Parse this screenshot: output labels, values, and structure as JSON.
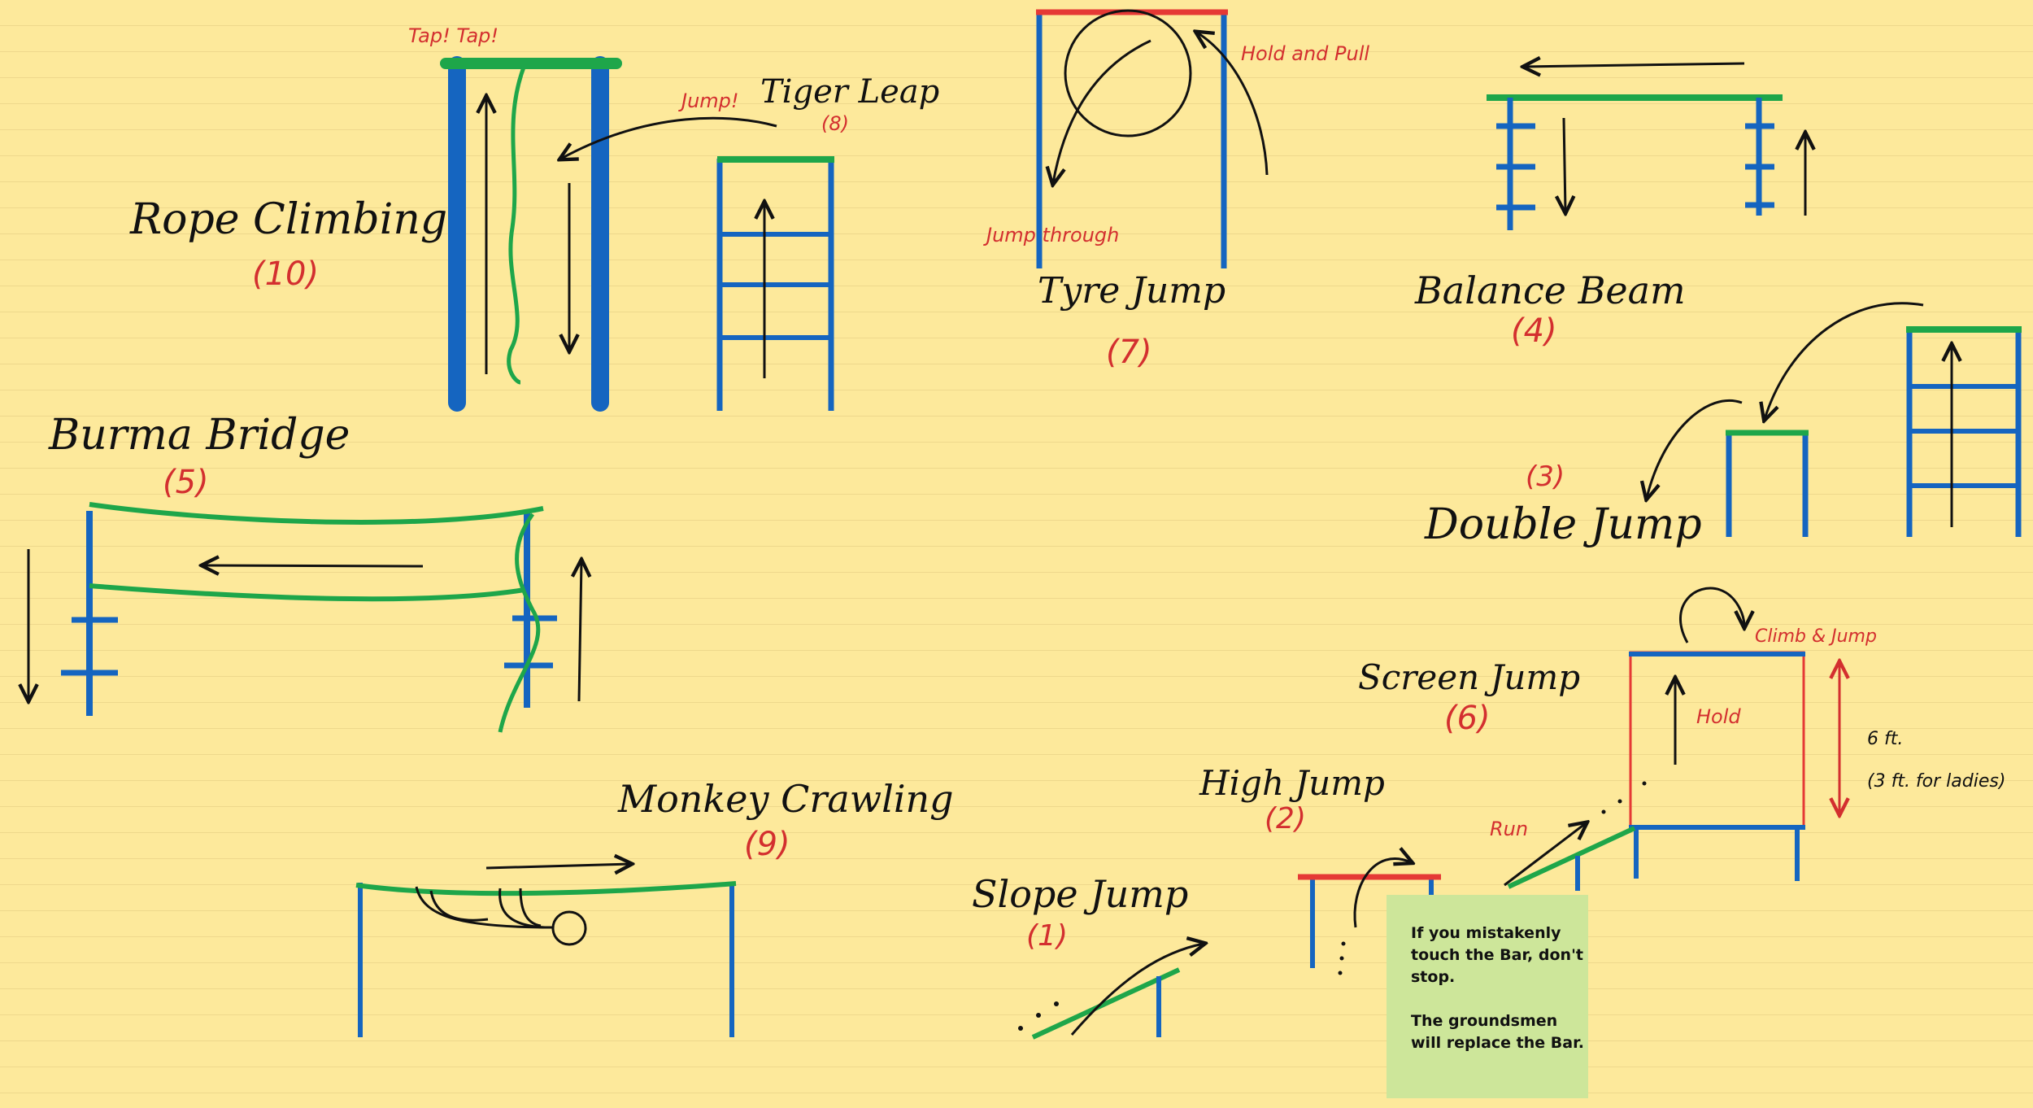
{
  "obstacles": {
    "rope_climbing": {
      "title": "Rope Climbing",
      "number": "(10)",
      "label_tap": "Tap! Tap!"
    },
    "tiger_leap": {
      "title": "Tiger Leap",
      "number": "(8)",
      "label_jump": "Jump!"
    },
    "tyre_jump": {
      "title": "Tyre Jump",
      "number": "(7)",
      "label_hold": "Hold and Pull",
      "label_through": "Jump through"
    },
    "balance_beam": {
      "title": "Balance Beam",
      "number": "(4)"
    },
    "burma_bridge": {
      "title": "Burma Bridge",
      "number": "(5)"
    },
    "double_jump": {
      "title": "Double Jump",
      "number": "(3)"
    },
    "screen_jump": {
      "title": "Screen Jump",
      "number": "(6)",
      "label_climb": "Climb & Jump",
      "label_hold": "Hold",
      "height": "6 ft.",
      "height_ladies": "(3 ft. for ladies)"
    },
    "high_jump": {
      "title": "High Jump",
      "number": "(2)",
      "label_run": "Run"
    },
    "monkey_crawling": {
      "title": "Monkey Crawling",
      "number": "(9)"
    },
    "slope_jump": {
      "title": "Slope Jump",
      "number": "(1)"
    }
  },
  "sticky_note": {
    "line1": "If you mistakenly touch the Bar, don't stop.",
    "line2": "The groundsmen will replace the Bar."
  },
  "colors": {
    "background": "#fde99b",
    "post": "#1565c0",
    "rope": "#1ea64a",
    "bar": "#e53935",
    "text_accent": "#d32f2f",
    "note": "#cde69a"
  }
}
